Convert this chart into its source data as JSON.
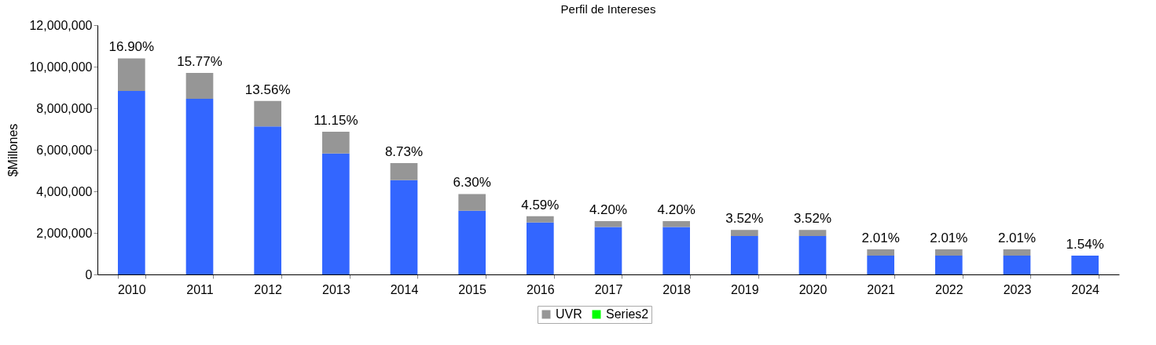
{
  "chart_data": {
    "type": "bar",
    "title": "Perfil de Intereses",
    "ylabel": "$Millones",
    "stacked": true,
    "categories": [
      "2010",
      "2011",
      "2012",
      "2013",
      "2014",
      "2015",
      "2016",
      "2017",
      "2018",
      "2019",
      "2020",
      "2021",
      "2022",
      "2023",
      "2024"
    ],
    "series": [
      {
        "color": "#3366ff",
        "values": [
          8830000,
          8450000,
          7120000,
          5820000,
          4540000,
          3070000,
          2500000,
          2280000,
          2280000,
          1850000,
          1850000,
          910000,
          910000,
          910000,
          910000
        ]
      },
      {
        "name": "UVR",
        "color": "#969696",
        "values": [
          1570000,
          1250000,
          1230000,
          1050000,
          820000,
          800000,
          300000,
          290000,
          290000,
          290000,
          290000,
          300000,
          300000,
          300000,
          0
        ]
      },
      {
        "name": "Series2",
        "color": "#00ff00",
        "values": [
          null,
          null,
          null,
          null,
          null,
          null,
          null,
          null,
          null,
          null,
          null,
          null,
          null,
          null,
          null
        ]
      }
    ],
    "ylim": [
      0,
      12000000
    ],
    "yticks": [
      0,
      {
        "value": 2000000,
        "label": "2,000,000"
      },
      {
        "value": 4000000,
        "label": "4,000,000"
      },
      {
        "value": 6000000,
        "label": "6,000,000"
      },
      {
        "value": 8000000,
        "label": "8,000,000"
      },
      {
        "value": 10000000,
        "label": "10,000,000"
      },
      {
        "value": 12000000,
        "label": "12,000,000"
      }
    ],
    "grid": false,
    "legend": "bottom",
    "annotations": [
      {
        "text": "16.90%",
        "x": "2010",
        "y": 10400000
      },
      {
        "text": "15.77%",
        "x": "2011",
        "y": 9700000
      },
      {
        "text": "13.56%",
        "x": "2012",
        "y": 8350000
      },
      {
        "text": "11.15%",
        "x": "2013",
        "y": 6870000
      },
      {
        "text": "8.73%",
        "x": "2014",
        "y": 5360000
      },
      {
        "text": "6.30%",
        "x": "2015",
        "y": 3870000
      },
      {
        "text": "4.59%",
        "x": "2016",
        "y": 2800000
      },
      {
        "text": "4.20%",
        "x": "2017",
        "y": 2570000
      },
      {
        "text": "4.20%",
        "x": "2018",
        "y": 2570000
      },
      {
        "text": "3.52%",
        "x": "2019",
        "y": 2140000
      },
      {
        "text": "3.52%",
        "x": "2020",
        "y": 2140000
      },
      {
        "text": "2.01%",
        "x": "2021",
        "y": 1210000
      },
      {
        "text": "2.01%",
        "x": "2022",
        "y": 1210000
      },
      {
        "text": "2.01%",
        "x": "2023",
        "y": 1210000
      },
      {
        "text": "1.54%",
        "x": "2024",
        "y": 910000
      }
    ]
  }
}
